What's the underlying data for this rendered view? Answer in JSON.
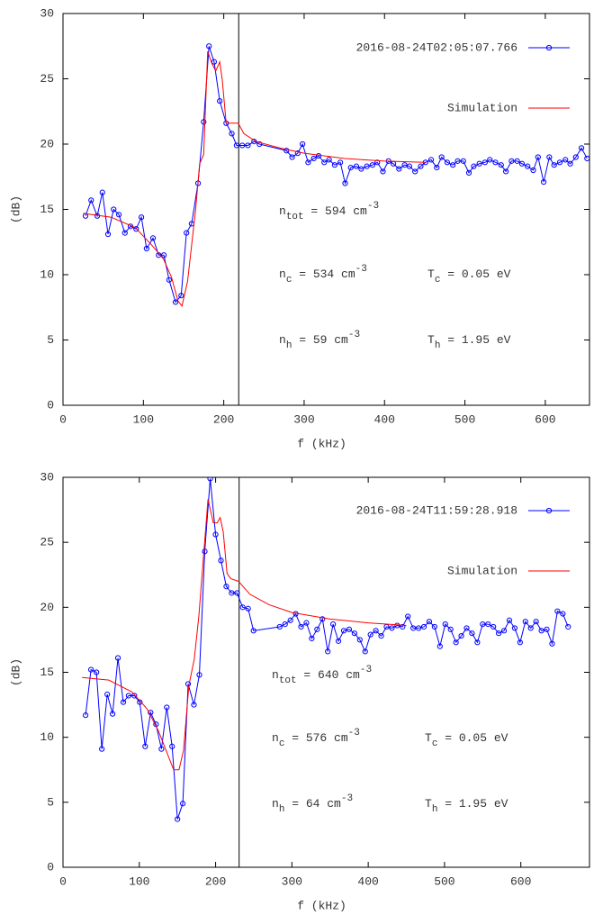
{
  "chart_data": [
    {
      "type": "line",
      "xlabel": "f (kHz)",
      "ylabel": "(dB)",
      "xlim": [
        0,
        655
      ],
      "ylim": [
        0,
        30
      ],
      "xticks": [
        0,
        100,
        200,
        300,
        400,
        500,
        600
      ],
      "yticks": [
        0,
        5,
        10,
        15,
        20,
        25,
        30
      ],
      "vline_x": 218.6,
      "series": [
        {
          "name": "2016-08-24T02:05:07.766",
          "color": "#0000ff",
          "markers": true,
          "x": [
            28,
            35,
            42.6,
            49,
            56,
            63,
            69.5,
            77,
            84,
            91,
            97.5,
            104,
            112,
            119,
            125.5,
            132,
            140,
            147,
            153.6,
            160,
            168,
            175,
            181.6,
            188,
            195,
            203,
            210,
            216,
            223,
            230,
            237.7,
            244.4,
            278,
            285,
            292,
            298,
            305,
            312,
            318,
            325,
            331,
            338,
            345,
            351,
            358,
            365,
            371,
            378,
            385,
            391,
            398,
            405,
            411,
            418,
            425,
            431,
            438,
            445,
            451,
            458,
            465,
            471,
            478,
            485,
            491,
            498,
            505,
            511,
            518,
            525,
            531,
            538,
            545,
            551,
            558,
            565,
            571,
            578,
            585,
            591,
            598,
            605,
            611,
            618,
            625,
            631,
            638,
            645,
            652
          ],
          "values": [
            14.5,
            15.7,
            14.5,
            16.3,
            13.1,
            15.0,
            14.6,
            13.2,
            13.7,
            13.5,
            14.4,
            12.0,
            12.8,
            11.5,
            11.5,
            9.6,
            7.9,
            8.4,
            13.2,
            13.9,
            17.0,
            21.7,
            27.5,
            26.3,
            23.3,
            21.6,
            20.8,
            19.9,
            19.9,
            19.9,
            20.2,
            20.0,
            19.5,
            19.0,
            19.3,
            20.0,
            18.6,
            18.9,
            19.1,
            18.6,
            18.8,
            18.4,
            18.6,
            17.0,
            18.2,
            18.3,
            18.1,
            18.3,
            18.4,
            18.6,
            17.9,
            18.7,
            18.5,
            18.1,
            18.4,
            18.3,
            17.9,
            18.3,
            18.6,
            18.8,
            18.2,
            19.0,
            18.6,
            18.4,
            18.7,
            18.7,
            17.8,
            18.3,
            18.5,
            18.6,
            18.8,
            18.6,
            18.4,
            17.9,
            18.7,
            18.7,
            18.5,
            18.3,
            18.0,
            19.0,
            17.1,
            19.0,
            18.4,
            18.6,
            18.8,
            18.5,
            19.0,
            19.7,
            18.9
          ]
        },
        {
          "name": "Simulation",
          "color": "#ff0000",
          "markers": false,
          "x": [
            25,
            60,
            90,
            110,
            125,
            135,
            143,
            148,
            155,
            165,
            170,
            175,
            180,
            185,
            190,
            195,
            198,
            203,
            210,
            218,
            225,
            240,
            270,
            300,
            350,
            400,
            450
          ],
          "values": [
            14.7,
            14.4,
            13.6,
            12.3,
            11.2,
            9.8,
            8.0,
            7.6,
            9.5,
            15,
            18.5,
            19.2,
            27.1,
            26.2,
            25.6,
            26.3,
            25.0,
            21.6,
            21.6,
            21.6,
            20.8,
            20.2,
            19.7,
            19.3,
            18.9,
            18.7,
            18.6
          ]
        }
      ],
      "annotations": [
        {
          "base": "n",
          "sub": "tot",
          "text": " = 594 cm",
          "sup": "-3"
        },
        {
          "base": "n",
          "sub": "c",
          "text": " = 534 cm",
          "sup": "-3"
        },
        {
          "base": "T",
          "sub": "c",
          "text": " = 0.05 eV"
        },
        {
          "base": "n",
          "sub": "h",
          "text": " = 59 cm",
          "sup": "-3"
        },
        {
          "base": "T",
          "sub": "h",
          "text": " = 1.95 eV"
        }
      ]
    },
    {
      "type": "line",
      "xlabel": "f (kHz)",
      "ylabel": "(dB)",
      "xlim": [
        0,
        690
      ],
      "ylim": [
        0,
        30
      ],
      "xticks": [
        0,
        100,
        200,
        300,
        400,
        500,
        600
      ],
      "yticks": [
        0,
        5,
        10,
        15,
        20,
        25,
        30
      ],
      "vline_x": 230.8,
      "series": [
        {
          "name": "2016-08-24T11:59:28.918",
          "color": "#0000ff",
          "markers": true,
          "x": [
            29.6,
            36.7,
            43.8,
            50.9,
            58,
            65,
            72,
            79,
            86,
            93.5,
            100.6,
            107.7,
            114.8,
            121.9,
            129,
            136,
            143,
            150,
            157,
            164,
            171.6,
            178.7,
            185.8,
            192.9,
            200,
            207,
            214,
            221,
            228,
            235.5,
            242.6,
            249.7,
            284,
            291,
            298,
            305,
            312,
            319,
            326,
            333,
            340,
            347,
            354,
            361,
            368,
            375,
            382,
            389,
            396,
            403,
            410,
            417,
            424,
            431,
            438,
            445,
            452,
            459,
            466,
            473,
            480,
            487,
            494,
            501,
            508,
            515,
            522,
            529,
            536,
            543,
            550,
            557,
            564,
            571,
            578,
            585,
            592,
            599,
            606,
            613,
            620,
            627,
            634,
            641,
            648,
            655,
            662
          ],
          "values": [
            11.7,
            15.2,
            15.0,
            9.1,
            13.3,
            11.8,
            16.1,
            12.7,
            13.2,
            13.2,
            12.7,
            9.3,
            11.9,
            11.0,
            9.1,
            12.3,
            9.3,
            3.7,
            4.9,
            14.1,
            12.5,
            14.8,
            24.3,
            29.9,
            25.6,
            23.6,
            21.6,
            21.1,
            21.1,
            20.0,
            19.9,
            18.2,
            18.5,
            18.7,
            19.0,
            19.5,
            18.5,
            18.8,
            17.6,
            18.3,
            19.1,
            16.6,
            18.7,
            17.4,
            18.2,
            18.3,
            18.0,
            17.5,
            16.6,
            17.9,
            18.2,
            17.8,
            18.5,
            18.4,
            18.6,
            18.5,
            19.3,
            18.4,
            18.4,
            18.5,
            18.9,
            18.5,
            17.0,
            18.7,
            18.3,
            17.3,
            17.8,
            18.4,
            18.0,
            17.3,
            18.7,
            18.7,
            18.5,
            18.0,
            18.2,
            19.0,
            18.4,
            17.3,
            18.9,
            18.4,
            18.9,
            18.2,
            18.3,
            17.2,
            19.7,
            19.5,
            18.5
          ]
        },
        {
          "name": "Simulation",
          "color": "#ff0000",
          "markers": false,
          "x": [
            25,
            60,
            90,
            110,
            125,
            135,
            145,
            152,
            158,
            165,
            172,
            178,
            190,
            197,
            202,
            206,
            210,
            215,
            220,
            230,
            245,
            270,
            300,
            350,
            400,
            450
          ],
          "values": [
            14.6,
            14.4,
            13.5,
            12.2,
            10.5,
            9.0,
            7.5,
            7.5,
            9.0,
            14,
            16,
            19.3,
            28.3,
            26.5,
            26.5,
            26.9,
            25.8,
            22.6,
            22.2,
            22.0,
            21.0,
            20.2,
            19.6,
            19.1,
            18.8,
            18.6
          ]
        }
      ],
      "annotations": [
        {
          "base": "n",
          "sub": "tot",
          "text": " = 640 cm",
          "sup": "-3"
        },
        {
          "base": "n",
          "sub": "c",
          "text": " = 576 cm",
          "sup": "-3"
        },
        {
          "base": "T",
          "sub": "c",
          "text": " = 0.05 eV"
        },
        {
          "base": "n",
          "sub": "h",
          "text": " = 64 cm",
          "sup": "-3"
        },
        {
          "base": "T",
          "sub": "h",
          "text": " = 1.95 eV"
        }
      ]
    }
  ]
}
